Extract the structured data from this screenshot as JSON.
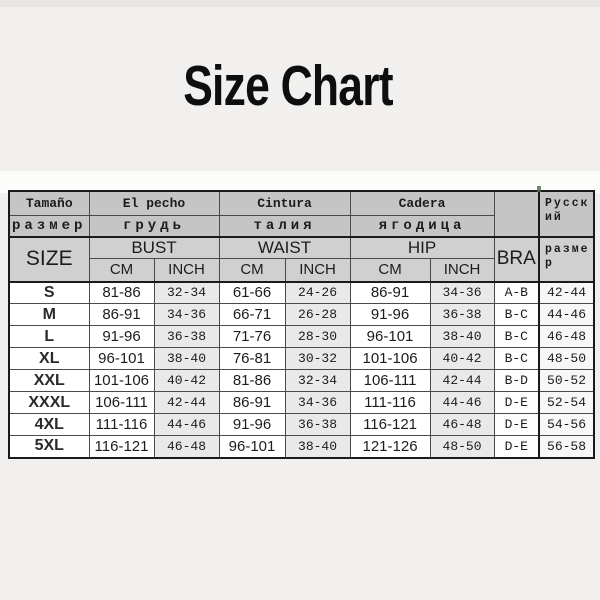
{
  "page": {
    "title": "Size Chart"
  },
  "size_table": {
    "header": {
      "size_es": "Tamaño",
      "size_ru": "размер",
      "size_en": "SIZE",
      "bust_es": "El pecho",
      "bust_ru": "грудь",
      "bust_en": "BUST",
      "waist_es": "Cintura",
      "waist_ru": "талия",
      "waist_en": "WAIST",
      "hip_es": "Cadera",
      "hip_ru": "ягодица",
      "hip_en": "HIP",
      "bra_en": "BRA",
      "russian_title": "Русский",
      "russian_sub": "размер",
      "unit_cm": "CM",
      "unit_inch": "INCH"
    },
    "rows": [
      {
        "size": "S",
        "bust_cm": "81-86",
        "bust_inch": "32-34",
        "waist_cm": "61-66",
        "waist_inch": "24-26",
        "hip_cm": "86-91",
        "hip_inch": "34-36",
        "bra": "A-B",
        "rus": "42-44"
      },
      {
        "size": "M",
        "bust_cm": "86-91",
        "bust_inch": "34-36",
        "waist_cm": "66-71",
        "waist_inch": "26-28",
        "hip_cm": "91-96",
        "hip_inch": "36-38",
        "bra": "B-C",
        "rus": "44-46"
      },
      {
        "size": "L",
        "bust_cm": "91-96",
        "bust_inch": "36-38",
        "waist_cm": "71-76",
        "waist_inch": "28-30",
        "hip_cm": "96-101",
        "hip_inch": "38-40",
        "bra": "B-C",
        "rus": "46-48"
      },
      {
        "size": "XL",
        "bust_cm": "96-101",
        "bust_inch": "38-40",
        "waist_cm": "76-81",
        "waist_inch": "30-32",
        "hip_cm": "101-106",
        "hip_inch": "40-42",
        "bra": "B-C",
        "rus": "48-50"
      },
      {
        "size": "XXL",
        "bust_cm": "101-106",
        "bust_inch": "40-42",
        "waist_cm": "81-86",
        "waist_inch": "32-34",
        "hip_cm": "106-111",
        "hip_inch": "42-44",
        "bra": "B-D",
        "rus": "50-52"
      },
      {
        "size": "XXXL",
        "bust_cm": "106-111",
        "bust_inch": "42-44",
        "waist_cm": "86-91",
        "waist_inch": "34-36",
        "hip_cm": "111-116",
        "hip_inch": "44-46",
        "bra": "D-E",
        "rus": "52-54"
      },
      {
        "size": "4XL",
        "bust_cm": "111-116",
        "bust_inch": "44-46",
        "waist_cm": "91-96",
        "waist_inch": "36-38",
        "hip_cm": "116-121",
        "hip_inch": "46-48",
        "bra": "D-E",
        "rus": "54-56"
      },
      {
        "size": "5XL",
        "bust_cm": "116-121",
        "bust_inch": "46-48",
        "waist_cm": "96-101",
        "waist_inch": "38-40",
        "hip_cm": "121-126",
        "hip_inch": "48-50",
        "bra": "D-E",
        "rus": "56-58"
      }
    ]
  },
  "colors": {
    "page_background": "#f1f0ee",
    "header_gray": "#c5c5c5",
    "header_gray_light": "#d0d0d0",
    "inch_cell_gray": "#e9e9e9",
    "border_dark": "#1a1a1a",
    "title_black": "#0e0e0e"
  }
}
